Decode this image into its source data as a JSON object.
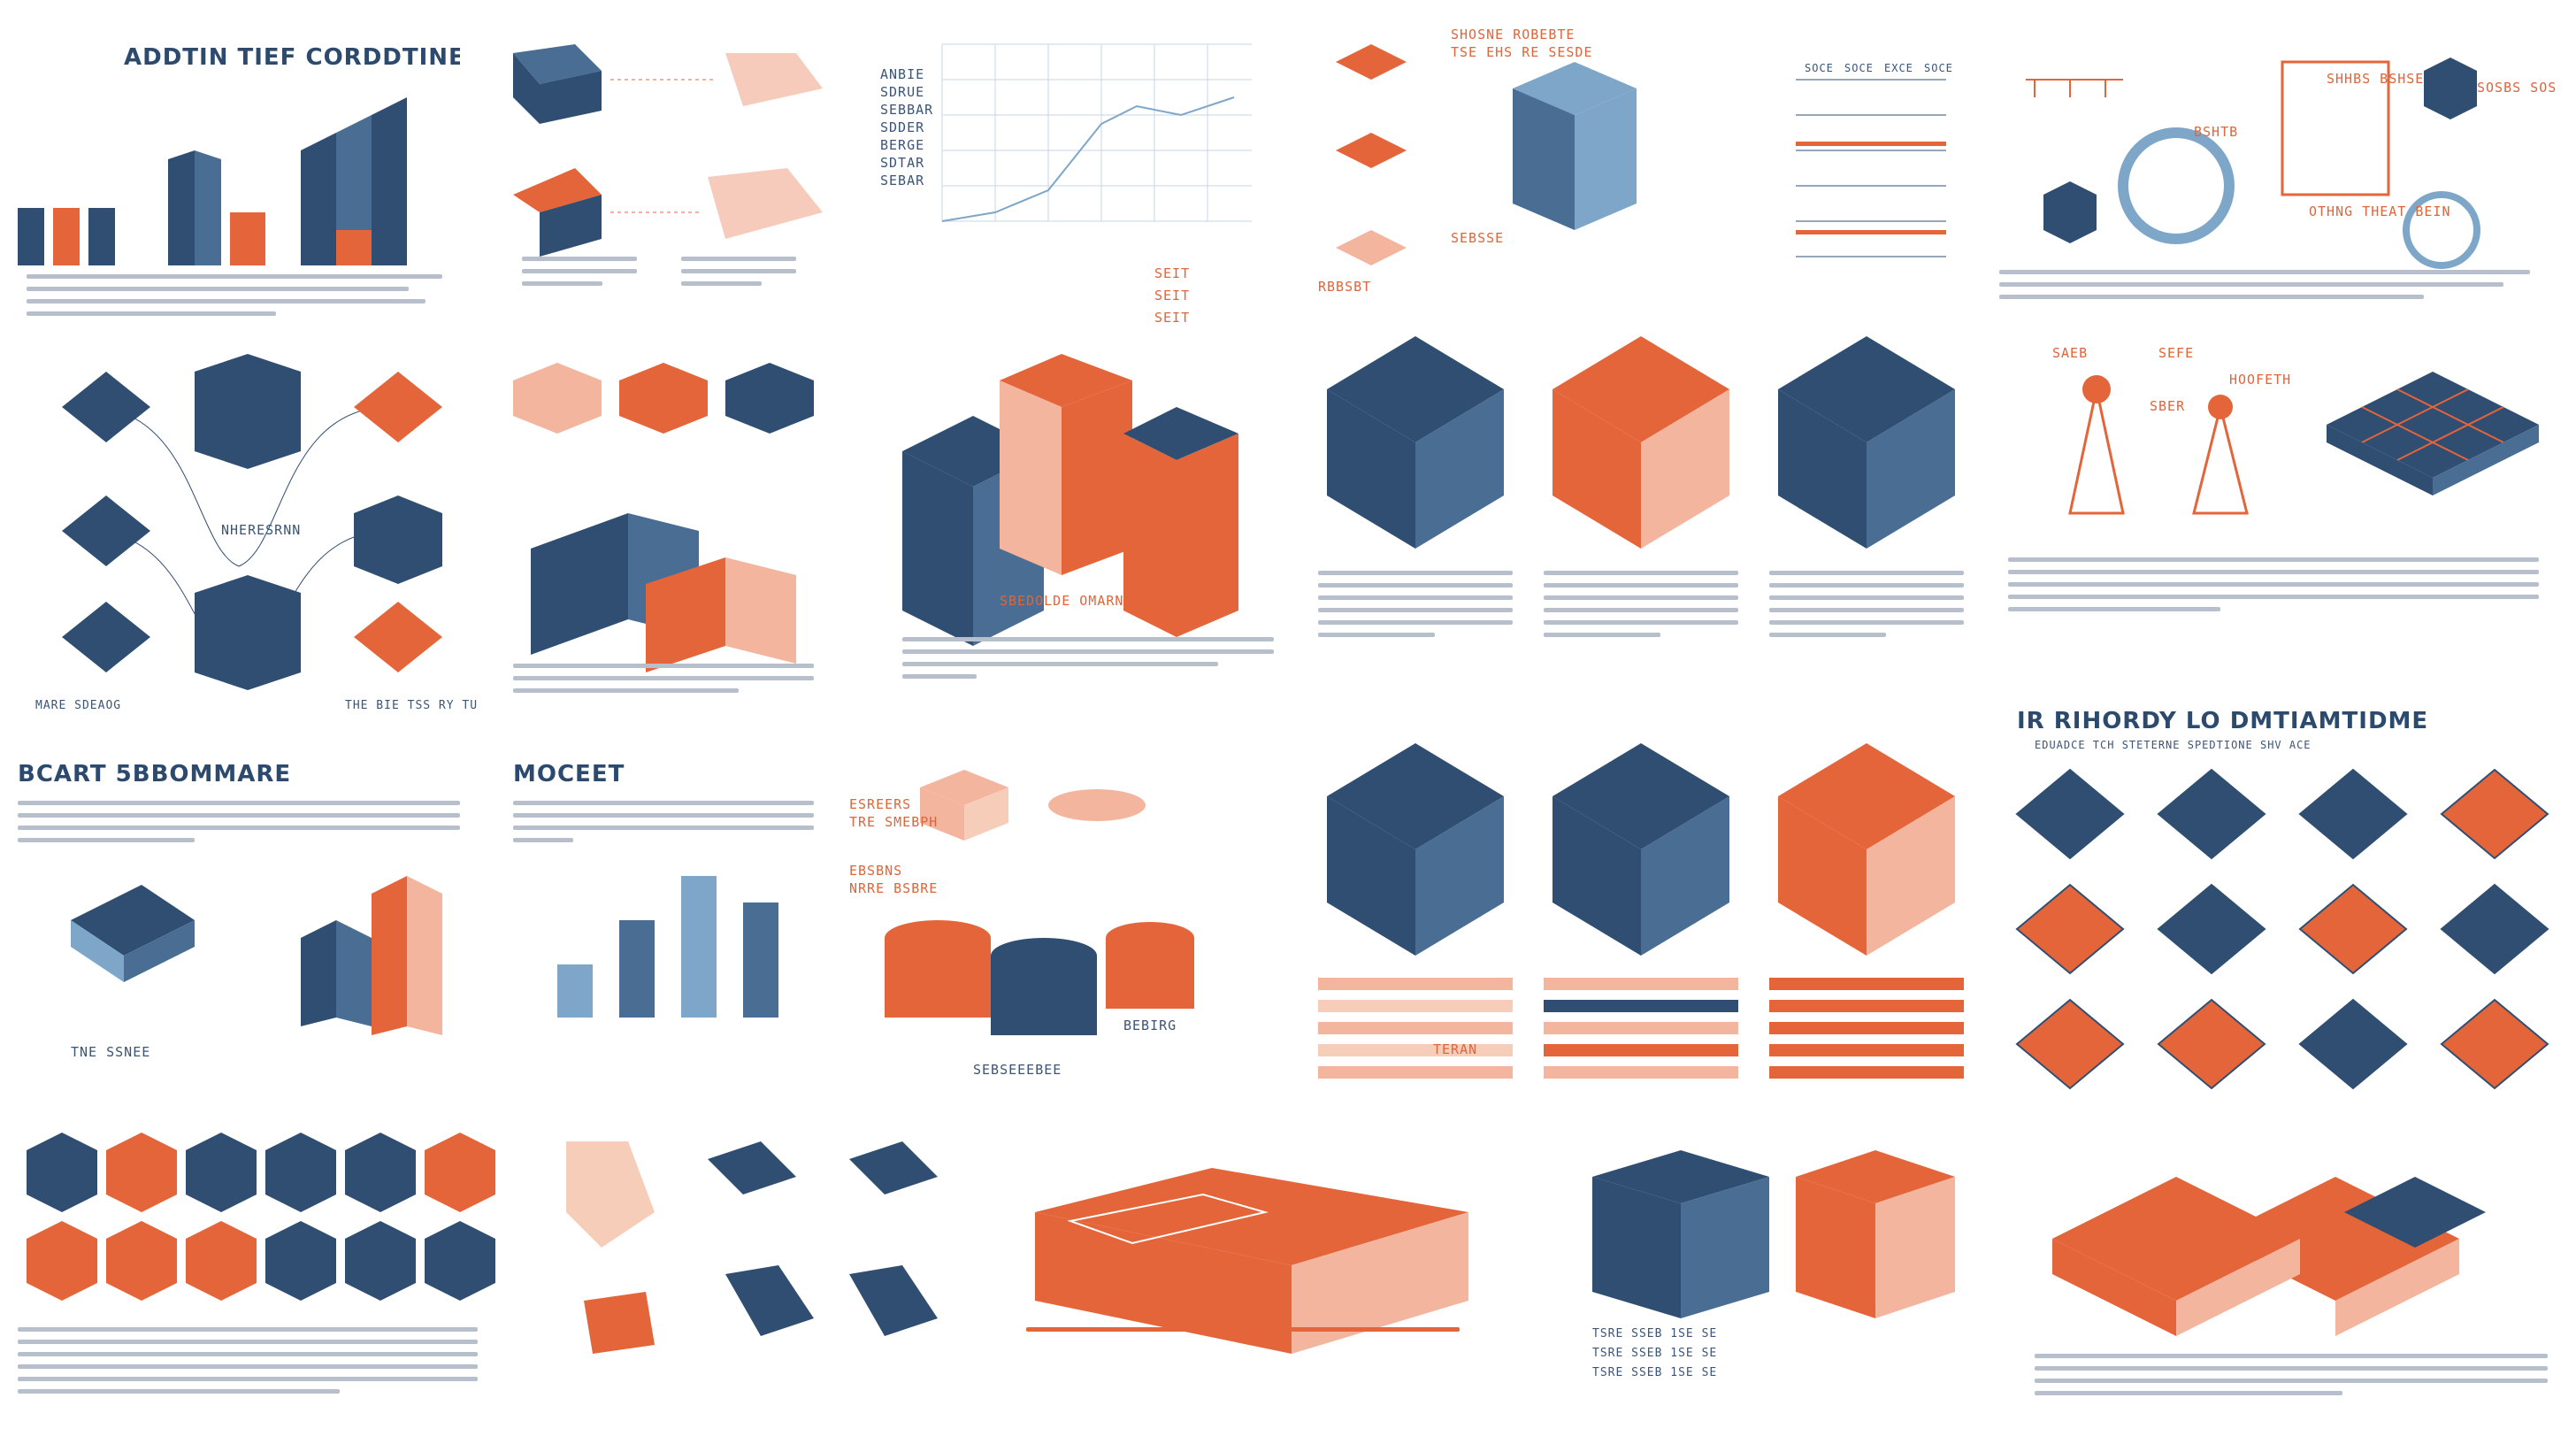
{
  "colors": {
    "navy": "#2f4e72",
    "navy_light": "#4a6d94",
    "blue_pale": "#7ea6c8",
    "orange": "#e4653a",
    "orange_light": "#f3b59e",
    "peach": "#f6cdb9",
    "text_grey": "#b6bfcb"
  },
  "tiles": {
    "t1": {
      "title": "ADDTIN TIEF CORDDTINE",
      "icons": [
        "navy-cube-icon",
        "orange-cube-icon",
        "bar-stack-icon"
      ]
    },
    "t2": {
      "icons": [
        "navy-cube-icon",
        "hatched-arrow-icon"
      ]
    },
    "t3": {
      "lines": [
        "ANBIE",
        "SDRUE",
        "SEBBAR",
        "SDDER",
        "BERGE",
        "SDTAR",
        "SEBAR"
      ],
      "legend": [
        "SEIT",
        "SEIT",
        "SEIT"
      ],
      "icons": [
        "line-chart-icon"
      ]
    },
    "t4": {
      "label1": "SHOSNE ROBEBTE",
      "label2": "TSE EHS RE SESDE",
      "label3": "SEBSSE",
      "label4": "RBBSBT",
      "icons": [
        "orange-tile-icon",
        "pale-box-icon"
      ]
    },
    "t5": {
      "header": [
        "SOCE",
        "SOCE",
        "EXCE",
        "SOCE"
      ],
      "icons": [
        "table-grid-icon"
      ]
    },
    "t6": {
      "label1": "SHHBS BSHSE",
      "label2": "SOSBS SOSSE",
      "label3": "BSHTB",
      "label4": "OTHNG THEAT BEIN",
      "icons": [
        "network-ring-icon",
        "hexagon-icon"
      ]
    },
    "t7": {
      "center": "NHERESRNN",
      "foot1": "MARE SDEAOG",
      "foot2": "THE BIE TSS RY TUHES",
      "icons": [
        "diamond-node-icon",
        "cube-network-icon"
      ]
    },
    "t8": {
      "icons": [
        "pattern-cube-icon",
        "server-rack-icon"
      ]
    },
    "t9": {
      "label": "SBEDOLDE OMARNE",
      "icons": [
        "tower-cube-icon"
      ]
    },
    "t10": {
      "icons": [
        "navy-cube-icon"
      ]
    },
    "t11": {
      "icons": [
        "orange-cube-icon"
      ]
    },
    "t12": {
      "icons": [
        "navy-cube-icon"
      ]
    },
    "t13": {
      "labels": [
        "SAEB",
        "SEFE",
        "SBER",
        "HOOFETH"
      ],
      "icons": [
        "beacon-tower-icon",
        "grid-platform-icon"
      ]
    },
    "t14": {
      "title": "BCART 5BBOMMARE",
      "sub": "TNE SSNEE",
      "icons": [
        "stacked-server-icon",
        "bar-chart-icon"
      ]
    },
    "t15": {
      "title": "MOCEET",
      "icons": [
        "bar-chart-icon"
      ]
    },
    "t16": {
      "label1": "ESREERS",
      "label2": "TRE SMEBPH",
      "label3": "EBSBNS",
      "label4": "NRRE BSBRE",
      "label5": "BEBIRG",
      "label6": "SEBSEEEBEE",
      "icons": [
        "cylinder-icon",
        "diamond-stack-icon"
      ]
    },
    "t17": {
      "label": "TERAN",
      "icons": [
        "navy-cube-icon",
        "progress-bars-icon"
      ]
    },
    "t18": {
      "icons": [
        "navy-cube-icon",
        "progress-bars-icon"
      ]
    },
    "t19": {
      "icons": [
        "orange-cube-icon",
        "progress-bars-icon"
      ]
    },
    "t20": {
      "title": "IR RIHORDY LO DMTIAMTIDME",
      "sub": "EDUADCE TCH STETERNE SPEDTIONE SHV ACE",
      "icons": [
        "diamond-lattice-icon"
      ]
    },
    "t21": {
      "icons": [
        "cube-pattern-icon"
      ]
    },
    "t22": {
      "icons": [
        "hatched-cube-icon"
      ]
    },
    "t23": {
      "icons": [
        "isometric-platform-icon"
      ]
    },
    "t24": {
      "rows": [
        "TSRE SSEB 1SE SE",
        "TSRE SSEB 1SE SE",
        "TSRE SSEB 1SE SE"
      ],
      "icons": [
        "navy-cube-icon",
        "orange-cube-icon"
      ]
    },
    "t25": {
      "icons": [
        "isometric-platform-icon"
      ]
    }
  }
}
